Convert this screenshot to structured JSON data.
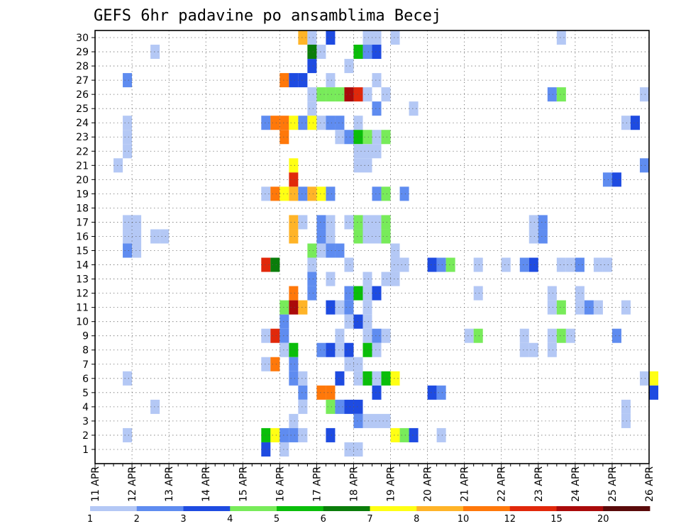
{
  "chart_data": {
    "type": "heatmap",
    "title": "GEFS 6hr padavine po ansamblima Becej",
    "x_tick_labels": [
      "11 APR",
      "12 APR",
      "13 APR",
      "14 APR",
      "15 APR",
      "16 APR",
      "17 APR",
      "18 APR",
      "19 APR",
      "20 APR",
      "21 APR",
      "22 APR",
      "23 APR",
      "24 APR",
      "25 APR",
      "26 APR"
    ],
    "y_tick_labels": [
      "1",
      "2",
      "3",
      "4",
      "5",
      "6",
      "7",
      "8",
      "9",
      "10",
      "11",
      "12",
      "13",
      "14",
      "15",
      "16",
      "17",
      "18",
      "19",
      "20",
      "21",
      "22",
      "23",
      "24",
      "25",
      "26",
      "27",
      "28",
      "29",
      "30"
    ],
    "x_range_days": [
      0,
      15
    ],
    "step_hours": 6,
    "grid": "dotted",
    "colorbar": {
      "position": "bottom",
      "labels": [
        "1",
        "2",
        "3",
        "4",
        "5",
        "6",
        "7",
        "8",
        "10",
        "12",
        "15",
        "20"
      ],
      "colors": [
        "#b4c8f5",
        "#5f8cf0",
        "#1e4be1",
        "#78eb5a",
        "#0abe0a",
        "#0a7d0a",
        "#ffff14",
        "#ffb428",
        "#ff780a",
        "#e1280a",
        "#aa0a0a",
        "#5a0a0a"
      ]
    },
    "cells": [
      [
        30,
        19,
        10
      ],
      [
        30,
        20,
        2
      ],
      [
        30,
        21,
        7
      ],
      [
        30,
        22,
        8
      ],
      [
        30,
        23,
        5
      ],
      [
        30,
        24,
        1
      ],
      [
        30,
        25,
        2
      ],
      [
        30,
        27,
        1
      ],
      [
        30,
        28,
        0
      ],
      [
        30,
        30,
        0
      ],
      [
        30,
        31,
        4
      ],
      [
        30,
        32,
        0
      ],
      [
        30,
        35,
        2
      ],
      [
        30,
        36,
        8
      ],
      [
        30,
        37,
        0
      ],
      [
        30,
        41,
        2
      ],
      [
        30,
        44,
        0
      ],
      [
        30,
        45,
        0
      ],
      [
        30,
        47,
        0
      ],
      [
        30,
        53,
        1
      ],
      [
        30,
        54,
        1
      ],
      [
        30,
        55,
        0
      ],
      [
        29,
        22,
        7
      ],
      [
        29,
        23,
        0
      ],
      [
        29,
        25,
        2
      ],
      [
        29,
        29,
        0
      ],
      [
        29,
        30,
        0
      ],
      [
        29,
        32,
        0
      ],
      [
        29,
        50,
        0
      ],
      [
        28,
        6,
        0
      ],
      [
        28,
        23,
        5
      ],
      [
        28,
        24,
        0
      ],
      [
        28,
        28,
        4
      ],
      [
        28,
        29,
        1
      ],
      [
        28,
        30,
        2
      ],
      [
        27,
        23,
        2
      ],
      [
        27,
        27,
        0
      ],
      [
        26,
        3,
        1
      ],
      [
        26,
        20,
        8
      ],
      [
        26,
        21,
        2
      ],
      [
        26,
        22,
        2
      ],
      [
        26,
        25,
        0
      ],
      [
        26,
        30,
        0
      ],
      [
        25,
        23,
        0
      ],
      [
        25,
        24,
        3
      ],
      [
        25,
        25,
        3
      ],
      [
        25,
        26,
        3
      ],
      [
        25,
        27,
        10
      ],
      [
        25,
        28,
        9
      ],
      [
        25,
        29,
        0
      ],
      [
        25,
        31,
        0
      ],
      [
        25,
        49,
        1
      ],
      [
        25,
        50,
        3
      ],
      [
        25,
        59,
        0
      ],
      [
        24,
        23,
        0
      ],
      [
        24,
        30,
        1
      ],
      [
        24,
        34,
        0
      ],
      [
        23,
        3,
        0
      ],
      [
        23,
        18,
        1
      ],
      [
        23,
        19,
        8
      ],
      [
        23,
        20,
        8
      ],
      [
        23,
        21,
        6
      ],
      [
        23,
        22,
        1
      ],
      [
        23,
        23,
        6
      ],
      [
        23,
        24,
        0
      ],
      [
        23,
        25,
        1
      ],
      [
        23,
        26,
        1
      ],
      [
        23,
        28,
        0
      ],
      [
        23,
        57,
        0
      ],
      [
        23,
        58,
        2
      ],
      [
        22,
        3,
        0
      ],
      [
        22,
        20,
        8
      ],
      [
        22,
        26,
        0
      ],
      [
        22,
        27,
        1
      ],
      [
        22,
        28,
        4
      ],
      [
        22,
        29,
        3
      ],
      [
        22,
        30,
        0
      ],
      [
        22,
        31,
        3
      ],
      [
        21,
        3,
        0
      ],
      [
        21,
        28,
        0
      ],
      [
        21,
        29,
        0
      ],
      [
        21,
        30,
        0
      ],
      [
        20,
        2,
        0
      ],
      [
        20,
        21,
        6
      ],
      [
        20,
        28,
        0
      ],
      [
        20,
        29,
        0
      ],
      [
        20,
        59,
        1
      ],
      [
        19,
        21,
        9
      ],
      [
        19,
        55,
        1
      ],
      [
        19,
        56,
        2
      ],
      [
        18,
        18,
        0
      ],
      [
        18,
        19,
        8
      ],
      [
        18,
        20,
        6
      ],
      [
        18,
        21,
        7
      ],
      [
        18,
        22,
        1
      ],
      [
        18,
        23,
        7
      ],
      [
        18,
        24,
        6
      ],
      [
        18,
        25,
        1
      ],
      [
        18,
        30,
        1
      ],
      [
        18,
        31,
        3
      ],
      [
        18,
        33,
        1
      ],
      [
        16,
        3,
        0
      ],
      [
        16,
        4,
        0
      ],
      [
        16,
        21,
        7
      ],
      [
        16,
        22,
        0
      ],
      [
        16,
        24,
        1
      ],
      [
        16,
        25,
        0
      ],
      [
        16,
        27,
        0
      ],
      [
        16,
        28,
        3
      ],
      [
        16,
        29,
        0
      ],
      [
        16,
        30,
        0
      ],
      [
        16,
        31,
        3
      ],
      [
        16,
        47,
        0
      ],
      [
        16,
        48,
        1
      ],
      [
        15,
        3,
        0
      ],
      [
        15,
        4,
        0
      ],
      [
        15,
        6,
        0
      ],
      [
        15,
        7,
        0
      ],
      [
        15,
        21,
        7
      ],
      [
        15,
        24,
        1
      ],
      [
        15,
        25,
        0
      ],
      [
        15,
        28,
        3
      ],
      [
        15,
        29,
        0
      ],
      [
        15,
        30,
        0
      ],
      [
        15,
        31,
        3
      ],
      [
        15,
        47,
        0
      ],
      [
        15,
        48,
        1
      ],
      [
        14,
        3,
        1
      ],
      [
        14,
        4,
        0
      ],
      [
        14,
        23,
        3
      ],
      [
        14,
        24,
        0
      ],
      [
        14,
        25,
        1
      ],
      [
        14,
        26,
        1
      ],
      [
        14,
        32,
        0
      ],
      [
        13,
        18,
        9
      ],
      [
        13,
        19,
        5
      ],
      [
        13,
        23,
        0
      ],
      [
        13,
        27,
        0
      ],
      [
        13,
        32,
        0
      ],
      [
        13,
        33,
        0
      ],
      [
        13,
        36,
        2
      ],
      [
        13,
        37,
        1
      ],
      [
        13,
        38,
        3
      ],
      [
        13,
        41,
        0
      ],
      [
        13,
        44,
        0
      ],
      [
        13,
        46,
        1
      ],
      [
        13,
        47,
        2
      ],
      [
        13,
        50,
        0
      ],
      [
        13,
        51,
        0
      ],
      [
        13,
        52,
        1
      ],
      [
        13,
        54,
        0
      ],
      [
        13,
        55,
        0
      ],
      [
        12,
        23,
        1
      ],
      [
        12,
        25,
        0
      ],
      [
        12,
        29,
        0
      ],
      [
        12,
        31,
        0
      ],
      [
        12,
        32,
        0
      ],
      [
        11,
        21,
        8
      ],
      [
        11,
        23,
        1
      ],
      [
        11,
        27,
        1
      ],
      [
        11,
        28,
        4
      ],
      [
        11,
        29,
        0
      ],
      [
        11,
        30,
        2
      ],
      [
        11,
        41,
        0
      ],
      [
        11,
        49,
        0
      ],
      [
        11,
        52,
        0
      ],
      [
        10,
        20,
        3
      ],
      [
        10,
        21,
        10
      ],
      [
        10,
        22,
        7
      ],
      [
        10,
        25,
        2
      ],
      [
        10,
        26,
        0
      ],
      [
        10,
        27,
        1
      ],
      [
        10,
        29,
        0
      ],
      [
        10,
        49,
        0
      ],
      [
        10,
        50,
        3
      ],
      [
        10,
        52,
        0
      ],
      [
        10,
        53,
        1
      ],
      [
        10,
        54,
        0
      ],
      [
        10,
        57,
        0
      ],
      [
        9,
        20,
        1
      ],
      [
        9,
        27,
        0
      ],
      [
        9,
        28,
        2
      ],
      [
        9,
        29,
        0
      ],
      [
        8,
        18,
        0
      ],
      [
        8,
        19,
        9
      ],
      [
        8,
        20,
        1
      ],
      [
        8,
        26,
        0
      ],
      [
        8,
        29,
        0
      ],
      [
        8,
        30,
        1
      ],
      [
        8,
        31,
        0
      ],
      [
        8,
        40,
        0
      ],
      [
        8,
        41,
        3
      ],
      [
        8,
        46,
        0
      ],
      [
        8,
        49,
        0
      ],
      [
        8,
        50,
        3
      ],
      [
        8,
        51,
        0
      ],
      [
        8,
        56,
        1
      ],
      [
        7,
        20,
        0
      ],
      [
        7,
        21,
        4
      ],
      [
        7,
        24,
        1
      ],
      [
        7,
        25,
        2
      ],
      [
        7,
        26,
        0
      ],
      [
        7,
        27,
        2
      ],
      [
        7,
        29,
        4
      ],
      [
        7,
        30,
        0
      ],
      [
        7,
        46,
        0
      ],
      [
        7,
        47,
        0
      ],
      [
        7,
        49,
        0
      ],
      [
        6,
        18,
        0
      ],
      [
        6,
        19,
        8
      ],
      [
        6,
        21,
        1
      ],
      [
        6,
        27,
        0
      ],
      [
        6,
        28,
        0
      ],
      [
        5,
        3,
        0
      ],
      [
        5,
        21,
        1
      ],
      [
        5,
        22,
        0
      ],
      [
        5,
        26,
        2
      ],
      [
        5,
        28,
        0
      ],
      [
        5,
        29,
        4
      ],
      [
        5,
        30,
        0
      ],
      [
        5,
        31,
        4
      ],
      [
        5,
        32,
        6
      ],
      [
        5,
        59,
        0
      ],
      [
        5,
        60,
        6
      ],
      [
        4,
        22,
        1
      ],
      [
        4,
        24,
        8
      ],
      [
        4,
        25,
        8
      ],
      [
        4,
        30,
        2
      ],
      [
        4,
        36,
        2
      ],
      [
        4,
        37,
        1
      ],
      [
        4,
        60,
        2
      ],
      [
        3,
        6,
        0
      ],
      [
        3,
        22,
        0
      ],
      [
        3,
        25,
        3
      ],
      [
        3,
        26,
        1
      ],
      [
        3,
        27,
        2
      ],
      [
        3,
        28,
        2
      ],
      [
        3,
        57,
        0
      ],
      [
        2,
        21,
        0
      ],
      [
        2,
        28,
        1
      ],
      [
        2,
        29,
        0
      ],
      [
        2,
        30,
        0
      ],
      [
        2,
        31,
        0
      ],
      [
        2,
        57,
        0
      ],
      [
        1,
        3,
        0
      ],
      [
        1,
        18,
        4
      ],
      [
        1,
        19,
        6
      ],
      [
        1,
        20,
        1
      ],
      [
        1,
        21,
        1
      ],
      [
        1,
        22,
        0
      ],
      [
        1,
        25,
        2
      ],
      [
        1,
        32,
        6
      ],
      [
        1,
        33,
        3
      ],
      [
        1,
        34,
        2
      ],
      [
        1,
        37,
        0
      ],
      [
        0,
        18,
        2
      ],
      [
        0,
        20,
        0
      ],
      [
        0,
        27,
        0
      ],
      [
        0,
        28,
        0
      ]
    ]
  }
}
